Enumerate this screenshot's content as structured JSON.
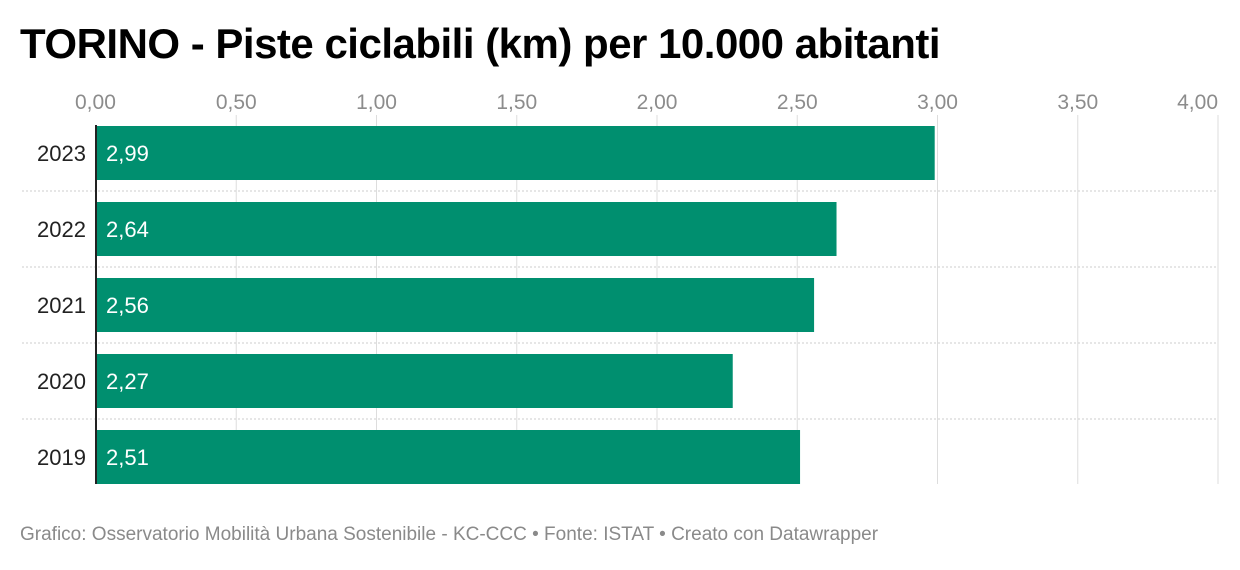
{
  "chart_data": {
    "type": "bar",
    "orientation": "horizontal",
    "title": "TORINO - Piste ciclabili (km) per 10.000 abitanti",
    "categories": [
      "2023",
      "2022",
      "2021",
      "2020",
      "2019"
    ],
    "values": [
      2.99,
      2.64,
      2.56,
      2.27,
      2.51
    ],
    "value_labels": [
      "2,99",
      "2,64",
      "2,56",
      "2,27",
      "2,51"
    ],
    "xlim": [
      0,
      4
    ],
    "x_ticks": [
      0,
      0.5,
      1,
      1.5,
      2,
      2.5,
      3,
      3.5,
      4
    ],
    "x_tick_labels": [
      "0,00",
      "0,50",
      "1,00",
      "1,50",
      "2,00",
      "2,50",
      "3,00",
      "3,50",
      "4,00"
    ],
    "x_axis_position": "top",
    "grid": true,
    "bar_color": "#008f6f"
  },
  "footer": "Grafico: Osservatorio Mobilità Urbana Sostenibile - KC-CCC • Fonte: ISTAT • Creato con Datawrapper"
}
